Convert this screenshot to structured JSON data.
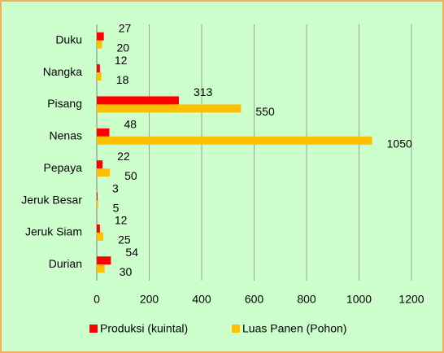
{
  "chart_data": {
    "type": "barh",
    "categories": [
      "Duku",
      "Nangka",
      "Pisang",
      "Nenas",
      "Pepaya",
      "Jeruk Besar",
      "Jeruk Siam",
      "Durian"
    ],
    "series": [
      {
        "name": "Produksi (kuintal)",
        "color": "#ff0000",
        "values": [
          27,
          12,
          313,
          48,
          22,
          3,
          12,
          54
        ]
      },
      {
        "name": "Luas Panen (Pohon)",
        "color": "#ffc000",
        "values": [
          20,
          18,
          550,
          1050,
          50,
          5,
          25,
          30
        ]
      }
    ],
    "xlim": [
      0,
      1200
    ],
    "xticks": [
      0,
      200,
      400,
      600,
      800,
      1000,
      1200
    ],
    "grid": true
  }
}
